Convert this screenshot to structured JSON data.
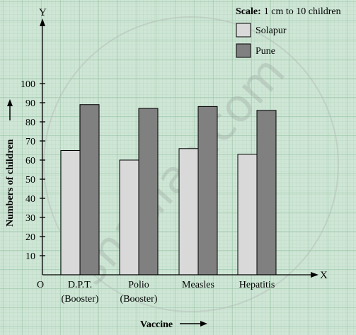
{
  "chart_data": {
    "type": "bar",
    "categories": [
      [
        "D.P.T.",
        "(Booster)"
      ],
      [
        "Polio",
        "(Booster)"
      ],
      [
        "Measles"
      ],
      [
        "Hepatitis"
      ]
    ],
    "series": [
      {
        "name": "Solapur",
        "color": "#d9d9d9",
        "values": [
          65,
          60,
          66,
          63
        ]
      },
      {
        "name": "Pune",
        "color": "#808080",
        "values": [
          89,
          87,
          88,
          86
        ]
      }
    ],
    "ylim": [
      0,
      100
    ],
    "yticks": [
      10,
      20,
      30,
      40,
      50,
      60,
      70,
      80,
      90,
      100
    ],
    "xlabel": "Vaccine",
    "ylabel": "Numbers of children",
    "axis_x_letter": "X",
    "axis_y_letter": "Y",
    "origin_label": "O",
    "scale_label": "Scale:",
    "scale_text": "1 cm to 10 children",
    "legend_placement": "top-right",
    "grid": true,
    "watermark": "shaalaa.com"
  }
}
